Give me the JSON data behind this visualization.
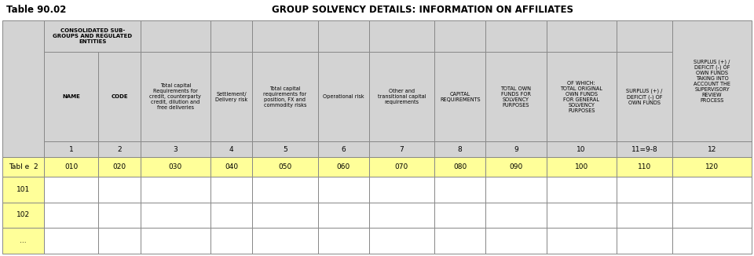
{
  "title_left": "Table 90.02",
  "title_center": "GROUP SOLVENCY DETAILS: INFORMATION ON AFFILIATES",
  "bg_color": "#ffffff",
  "header_bg": "#d3d3d3",
  "row_yellow": "#ffff99",
  "row_white": "#ffffff",
  "col_headers_inner": [
    "Total capital\nRequirements for\ncredit, counterparty\ncredit, dilution and\nfree deliveries",
    "Settlement/\nDelivery risk",
    "Total capital\nrequirements for\nposition, FX and\ncommodity risks",
    "Operational risk",
    "Other and\ntransitional capital\nrequirements",
    "CAPITAL\nREQUIREMENTS",
    "TOTAL OWN\nFUNDS FOR\nSOLVENCY\nPURPOSES",
    "OF WHICH:\nTOTAL ORIGINAL\nOWN FUNDS\nFOR GENERAL\nSOLVENCY\nPURPOSES",
    "SURPLUS (+) /\nDEFICIT (-) OF\nOWN FUNDS"
  ],
  "col12_header": "SURPLUS (+) /\nDEFICIT (-) OF\nOWN FUNDS\nTAKING INTO\nACCOUNT THE\nSUPERVISORY\nREVIEW\nPROCESS",
  "merged_header": "CONSOLIDATED SUB-\nGROUPS AND REGULATED\nENTITIES",
  "col_numbers": [
    "1",
    "2",
    "3",
    "4",
    "5",
    "6",
    "7",
    "8",
    "9",
    "10",
    "11=9-8",
    "12"
  ],
  "data_row_label": "Tabl e  2",
  "data_row_values": [
    "010",
    "020",
    "030",
    "040",
    "050",
    "060",
    "070",
    "080",
    "090",
    "100",
    "110",
    "120"
  ],
  "empty_rows": [
    "101",
    "102",
    "..."
  ],
  "font_size_title": 8.5,
  "font_size_header": 5.0,
  "font_size_data": 6.5,
  "edge_color": "#888888",
  "edge_lw": 0.7
}
